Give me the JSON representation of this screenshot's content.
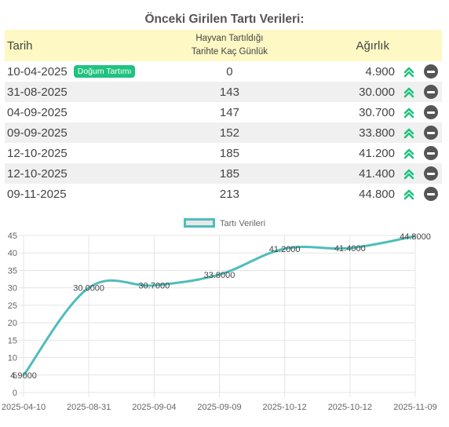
{
  "page": {
    "title": "Önceki Girilen Tartı Verileri:"
  },
  "table": {
    "headers": {
      "date": "Tarih",
      "days_line1": "Hayvan Tartıldığı",
      "days_line2": "Tarihte Kaç Günlük",
      "weight": "Ağırlık"
    },
    "rows": [
      {
        "date": "10-04-2025",
        "badge": "Doğum Tartımı",
        "days": "0",
        "weight": "4.900"
      },
      {
        "date": "31-08-2025",
        "badge": "",
        "days": "143",
        "weight": "30.000"
      },
      {
        "date": "04-09-2025",
        "badge": "",
        "days": "147",
        "weight": "30.700"
      },
      {
        "date": "09-09-2025",
        "badge": "",
        "days": "152",
        "weight": "33.800"
      },
      {
        "date": "12-10-2025",
        "badge": "",
        "days": "185",
        "weight": "41.200"
      },
      {
        "date": "12-10-2025",
        "badge": "",
        "days": "185",
        "weight": "41.400"
      },
      {
        "date": "09-11-2025",
        "badge": "",
        "days": "213",
        "weight": "44.800"
      }
    ],
    "icons": {
      "trend": "double-chevron-up-icon",
      "remove": "minus-circle-icon"
    }
  },
  "colors": {
    "badge": "#1fc27f",
    "trend": "#1fc27f",
    "line": "#4fbdba",
    "header_bg": "#fdf8c4"
  },
  "chart_data": {
    "type": "line",
    "categories": [
      "2025-04-10",
      "2025-08-31",
      "2025-09-04",
      "2025-09-09",
      "2025-10-12",
      "2025-10-12",
      "2025-11-09"
    ],
    "series": [
      {
        "name": "Tartı Verileri",
        "values": [
          4.9,
          30,
          30.7,
          33.8,
          41.2,
          41.4,
          44.8
        ]
      }
    ],
    "data_labels": [
      "4.9000",
      "30.0000",
      "30.7000",
      "33.8000",
      "41.2000",
      "41.4000",
      "44.8000"
    ],
    "y_ticks": [
      0,
      5,
      10,
      15,
      20,
      25,
      30,
      35,
      40,
      45
    ],
    "ylim": [
      0,
      45
    ],
    "grid": true,
    "legend": "top-center"
  }
}
